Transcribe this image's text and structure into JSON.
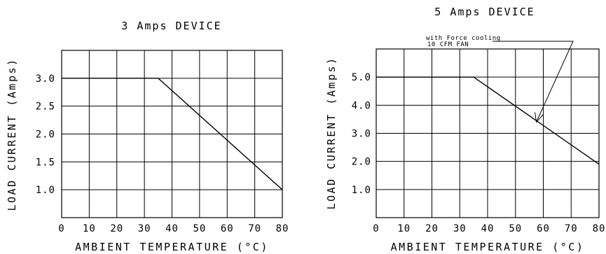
{
  "chart_data": [
    {
      "type": "line",
      "title": "3 Amps DEVICE",
      "xlabel": "AMBIENT TEMPERATURE (°C)",
      "ylabel": "LOAD CURRENT (Amps)",
      "xlim": [
        0,
        80
      ],
      "ylim": [
        0.5,
        3.5
      ],
      "x_ticks": [
        "0",
        "10",
        "20",
        "30",
        "40",
        "50",
        "60",
        "70",
        "80"
      ],
      "y_ticks": [
        "1.0",
        "1.5",
        "2.0",
        "2.5",
        "3.0"
      ],
      "grid": true,
      "series": [
        {
          "x": [
            0,
            35,
            80
          ],
          "y": [
            3.0,
            3.0,
            1.0
          ]
        }
      ]
    },
    {
      "type": "line",
      "title": "5 Amps DEVICE",
      "xlabel": "AMBIENT TEMPERATURE (°C)",
      "ylabel": "LOAD CURRENT (Amps)",
      "xlim": [
        0,
        80
      ],
      "ylim": [
        0,
        6
      ],
      "x_ticks": [
        "0",
        "10",
        "20",
        "30",
        "40",
        "50",
        "60",
        "70",
        "80"
      ],
      "y_ticks": [
        "1.0",
        "2.0",
        "3.0",
        "4.0",
        "5.0"
      ],
      "grid": true,
      "series": [
        {
          "x": [
            0,
            35,
            80
          ],
          "y": [
            5.0,
            5.0,
            1.9
          ]
        }
      ],
      "annotation": {
        "lines": [
          "with Force cooling",
          "10 CFM FAN"
        ],
        "points_to": {
          "x": 57.5,
          "y": 3.4
        }
      }
    }
  ]
}
